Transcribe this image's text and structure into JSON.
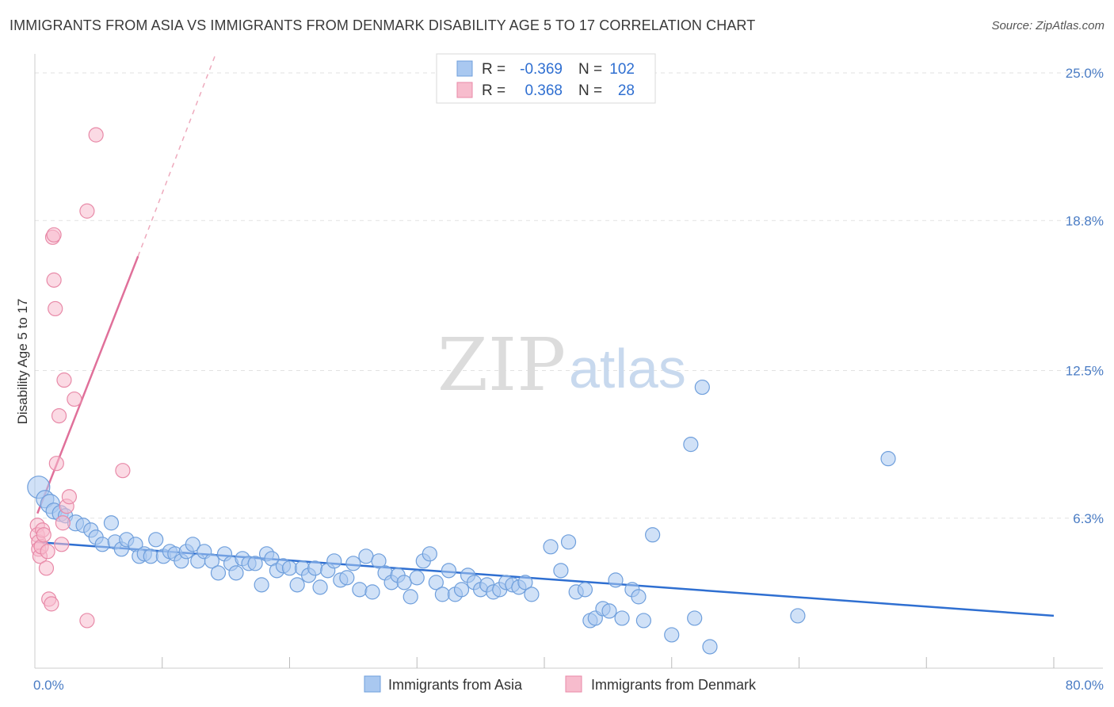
{
  "title": "IMMIGRANTS FROM ASIA VS IMMIGRANTS FROM DENMARK DISABILITY AGE 5 TO 17 CORRELATION CHART",
  "source": "Source: ZipAtlas.com",
  "watermark": {
    "zip": "ZIP",
    "atlas": "atlas"
  },
  "legend_box": {
    "rows": [
      {
        "r_label": "R =",
        "r_value": "-0.369",
        "n_label": "N =",
        "n_value": "102",
        "color": "#a9c8f0",
        "stroke": "#6f9fdc"
      },
      {
        "r_label": "R =",
        "r_value": "0.368",
        "n_label": "N =",
        "n_value": "28",
        "color": "#f7bccd",
        "stroke": "#e88aa8"
      }
    ]
  },
  "chart_data": {
    "type": "scatter",
    "title": "IMMIGRANTS FROM ASIA VS IMMIGRANTS FROM DENMARK DISABILITY AGE 5 TO 17 CORRELATION CHART",
    "xlabel": "",
    "ylabel": "Disability Age 5 to 17",
    "xlim": [
      0,
      80
    ],
    "ylim": [
      0,
      25.8
    ],
    "x_tick_labels": [
      "0.0%",
      "80.0%"
    ],
    "y_ticks": [
      6.3,
      12.5,
      18.8,
      25.0
    ],
    "y_tick_labels": [
      "6.3%",
      "12.5%",
      "18.8%",
      "25.0%"
    ],
    "grid": true,
    "legend_position": "bottom",
    "series": [
      {
        "name": "Immigrants from Asia",
        "color": "#a9c8f0",
        "stroke": "#6f9fdc",
        "trend": {
          "x": [
            0,
            80
          ],
          "y": [
            5.3,
            2.2
          ],
          "color": "#2f6fd1"
        },
        "points": [
          [
            0.3,
            7.6,
            14
          ],
          [
            0.8,
            7.1,
            11
          ],
          [
            1.2,
            6.9,
            12
          ],
          [
            1.5,
            6.6,
            10
          ],
          [
            2.0,
            6.5,
            10
          ],
          [
            2.4,
            6.4,
            9
          ],
          [
            3.2,
            6.1,
            10
          ],
          [
            3.8,
            6.0,
            9
          ],
          [
            4.4,
            5.8,
            9
          ],
          [
            4.8,
            5.5,
            9
          ],
          [
            5.3,
            5.2,
            9
          ],
          [
            6.0,
            6.1,
            9
          ],
          [
            6.3,
            5.3,
            9
          ],
          [
            6.8,
            5.0,
            9
          ],
          [
            7.2,
            5.4,
            9
          ],
          [
            7.9,
            5.2,
            9
          ],
          [
            8.2,
            4.7,
            9
          ],
          [
            8.6,
            4.8,
            9
          ],
          [
            9.1,
            4.7,
            9
          ],
          [
            9.5,
            5.4,
            9
          ],
          [
            10.1,
            4.7,
            9
          ],
          [
            10.6,
            4.9,
            9
          ],
          [
            11.0,
            4.8,
            9
          ],
          [
            11.5,
            4.5,
            9
          ],
          [
            11.9,
            4.9,
            9
          ],
          [
            12.4,
            5.2,
            9
          ],
          [
            12.8,
            4.5,
            9
          ],
          [
            13.3,
            4.9,
            9
          ],
          [
            13.9,
            4.5,
            9
          ],
          [
            14.4,
            4.0,
            9
          ],
          [
            14.9,
            4.8,
            9
          ],
          [
            15.4,
            4.4,
            9
          ],
          [
            15.8,
            4.0,
            9
          ],
          [
            16.3,
            4.6,
            9
          ],
          [
            16.8,
            4.4,
            9
          ],
          [
            17.3,
            4.4,
            9
          ],
          [
            17.8,
            3.5,
            9
          ],
          [
            18.2,
            4.8,
            9
          ],
          [
            18.6,
            4.6,
            9
          ],
          [
            19.0,
            4.1,
            9
          ],
          [
            19.5,
            4.3,
            9
          ],
          [
            20.0,
            4.2,
            9
          ],
          [
            20.6,
            3.5,
            9
          ],
          [
            21.0,
            4.2,
            9
          ],
          [
            21.5,
            3.9,
            9
          ],
          [
            22.0,
            4.2,
            9
          ],
          [
            22.4,
            3.4,
            9
          ],
          [
            23.0,
            4.1,
            9
          ],
          [
            23.5,
            4.5,
            9
          ],
          [
            24.0,
            3.7,
            9
          ],
          [
            24.5,
            3.8,
            9
          ],
          [
            25.0,
            4.4,
            9
          ],
          [
            25.5,
            3.3,
            9
          ],
          [
            26.0,
            4.7,
            9
          ],
          [
            26.5,
            3.2,
            9
          ],
          [
            27.0,
            4.5,
            9
          ],
          [
            27.5,
            4.0,
            9
          ],
          [
            28.0,
            3.6,
            9
          ],
          [
            28.5,
            3.9,
            9
          ],
          [
            29.0,
            3.6,
            9
          ],
          [
            29.5,
            3.0,
            9
          ],
          [
            30.0,
            3.8,
            9
          ],
          [
            30.5,
            4.5,
            9
          ],
          [
            31.0,
            4.8,
            9
          ],
          [
            31.5,
            3.6,
            9
          ],
          [
            32.0,
            3.1,
            9
          ],
          [
            32.5,
            4.1,
            9
          ],
          [
            33.0,
            3.1,
            9
          ],
          [
            33.5,
            3.3,
            9
          ],
          [
            34.0,
            3.9,
            9
          ],
          [
            34.5,
            3.6,
            9
          ],
          [
            35.0,
            3.3,
            9
          ],
          [
            35.5,
            3.5,
            9
          ],
          [
            36.0,
            3.2,
            9
          ],
          [
            36.5,
            3.3,
            9
          ],
          [
            37.0,
            3.6,
            9
          ],
          [
            37.5,
            3.5,
            9
          ],
          [
            38.0,
            3.4,
            9
          ],
          [
            38.5,
            3.6,
            9
          ],
          [
            39.0,
            3.1,
            9
          ],
          [
            40.5,
            5.1,
            9
          ],
          [
            41.9,
            5.3,
            9
          ],
          [
            42.5,
            3.2,
            9
          ],
          [
            43.2,
            3.3,
            9
          ],
          [
            43.6,
            2.0,
            9
          ],
          [
            44.0,
            2.1,
            9
          ],
          [
            44.6,
            2.5,
            9
          ],
          [
            45.1,
            2.4,
            9
          ],
          [
            45.6,
            3.7,
            9
          ],
          [
            46.1,
            2.1,
            9
          ],
          [
            46.9,
            3.3,
            9
          ],
          [
            47.4,
            3.0,
            9
          ],
          [
            47.8,
            2.0,
            9
          ],
          [
            48.5,
            5.6,
            9
          ],
          [
            50.0,
            1.4,
            9
          ],
          [
            51.8,
            2.1,
            9
          ],
          [
            52.4,
            11.8,
            9
          ],
          [
            53.0,
            0.9,
            9
          ],
          [
            51.5,
            9.4,
            9
          ],
          [
            59.9,
            2.2,
            9
          ],
          [
            67.0,
            8.8,
            9
          ],
          [
            41.3,
            4.1,
            9
          ]
        ]
      },
      {
        "name": "Immigrants from Denmark",
        "color": "#f7bccd",
        "stroke": "#e88aa8",
        "trend": {
          "x": [
            0.2,
            8.1
          ],
          "y": [
            6.5,
            17.3
          ],
          "color": "#e0709a",
          "dashed_extension": {
            "x": [
              8.1,
              14.2
            ],
            "y": [
              17.3,
              25.8
            ]
          }
        },
        "points": [
          [
            0.2,
            6.0,
            9
          ],
          [
            0.2,
            5.6,
            9
          ],
          [
            0.3,
            5.3,
            9
          ],
          [
            0.3,
            5.0,
            9
          ],
          [
            0.4,
            4.7,
            9
          ],
          [
            0.5,
            5.1,
            9
          ],
          [
            0.6,
            5.8,
            9
          ],
          [
            0.7,
            5.6,
            9
          ],
          [
            0.9,
            4.2,
            9
          ],
          [
            1.0,
            4.9,
            9
          ],
          [
            1.1,
            2.9,
            9
          ],
          [
            1.3,
            2.7,
            9
          ],
          [
            1.4,
            18.1,
            9
          ],
          [
            1.5,
            18.2,
            9
          ],
          [
            1.5,
            16.3,
            9
          ],
          [
            1.6,
            15.1,
            9
          ],
          [
            1.7,
            8.6,
            9
          ],
          [
            1.9,
            10.6,
            9
          ],
          [
            2.1,
            5.2,
            9
          ],
          [
            2.2,
            6.1,
            9
          ],
          [
            2.3,
            12.1,
            9
          ],
          [
            2.5,
            6.8,
            9
          ],
          [
            2.7,
            7.2,
            9
          ],
          [
            3.1,
            11.3,
            9
          ],
          [
            4.1,
            19.2,
            9
          ],
          [
            4.1,
            2.0,
            9
          ],
          [
            4.8,
            22.4,
            9
          ],
          [
            6.9,
            8.3,
            9
          ]
        ]
      }
    ]
  }
}
